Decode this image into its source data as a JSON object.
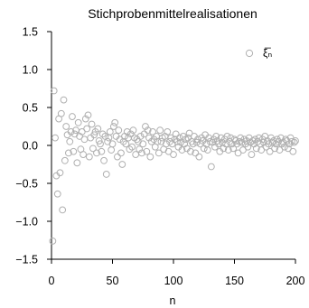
{
  "chart_data": {
    "type": "scatter",
    "title": "Stichprobenmittelrealisationen",
    "xlabel": "n",
    "ylabel": "",
    "xlim": [
      0,
      200
    ],
    "ylim": [
      -1.5,
      1.5
    ],
    "xticks": [
      0,
      50,
      100,
      150,
      200
    ],
    "xtick_labels": [
      "0",
      "50",
      "100",
      "150",
      "200"
    ],
    "yticks": [
      -1.5,
      -1.0,
      -0.5,
      0.0,
      0.5,
      1.0,
      1.5
    ],
    "ytick_labels": [
      "−1.5",
      "−1.0",
      "−0.5",
      "0.0",
      "0.5",
      "1.0",
      "1.5"
    ],
    "grid": false,
    "legend_position": "top-right",
    "series": [
      {
        "name": "ξ̅ₙ",
        "color": "#b0b0b0",
        "marker": "open-circle",
        "x": [
          1,
          2,
          3,
          4,
          5,
          6,
          7,
          8,
          9,
          10,
          11,
          12,
          13,
          14,
          15,
          16,
          17,
          18,
          19,
          20,
          21,
          22,
          23,
          24,
          25,
          26,
          27,
          28,
          29,
          30,
          31,
          32,
          33,
          34,
          35,
          36,
          37,
          38,
          39,
          40,
          41,
          42,
          43,
          44,
          45,
          46,
          47,
          48,
          49,
          50,
          51,
          52,
          53,
          54,
          55,
          56,
          57,
          58,
          59,
          60,
          61,
          62,
          63,
          64,
          65,
          66,
          67,
          68,
          69,
          70,
          71,
          72,
          73,
          74,
          75,
          76,
          77,
          78,
          79,
          80,
          81,
          82,
          83,
          84,
          85,
          86,
          87,
          88,
          89,
          90,
          91,
          92,
          93,
          94,
          95,
          96,
          97,
          98,
          99,
          100,
          101,
          102,
          103,
          104,
          105,
          106,
          107,
          108,
          109,
          110,
          111,
          112,
          113,
          114,
          115,
          116,
          117,
          118,
          119,
          120,
          121,
          122,
          123,
          124,
          125,
          126,
          127,
          128,
          129,
          130,
          131,
          132,
          133,
          134,
          135,
          136,
          137,
          138,
          139,
          140,
          141,
          142,
          143,
          144,
          145,
          146,
          147,
          148,
          149,
          150,
          151,
          152,
          153,
          154,
          155,
          156,
          157,
          158,
          159,
          160,
          161,
          162,
          163,
          164,
          165,
          166,
          167,
          168,
          169,
          170,
          171,
          172,
          173,
          174,
          175,
          176,
          177,
          178,
          179,
          180,
          181,
          182,
          183,
          184,
          185,
          186,
          187,
          188,
          189,
          190,
          191,
          192,
          193,
          194,
          195,
          196,
          197,
          198,
          199,
          200
        ],
        "y": [
          -1.26,
          0.72,
          0.1,
          -0.4,
          -0.64,
          0.35,
          -0.36,
          0.42,
          -0.85,
          0.6,
          -0.2,
          0.25,
          0.14,
          -0.1,
          0.05,
          0.18,
          0.38,
          -0.08,
          0.15,
          0.2,
          -0.23,
          0.3,
          0.12,
          -0.05,
          0.18,
          -0.12,
          0.08,
          0.35,
          0.22,
          0.4,
          -0.15,
          0.1,
          0.28,
          -0.04,
          0.14,
          0.18,
          -0.1,
          0.22,
          0.06,
          0.02,
          -0.08,
          0.15,
          -0.2,
          0.12,
          -0.38,
          0.05,
          0.1,
          0.18,
          -0.06,
          0.02,
          0.25,
          0.3,
          0.12,
          -0.15,
          0.2,
          0.08,
          -0.1,
          -0.25,
          0.05,
          0.12,
          0.02,
          0.18,
          0.1,
          -0.05,
          0.15,
          -0.02,
          0.2,
          0.1,
          -0.12,
          0.08,
          0.05,
          -0.05,
          0.12,
          -0.1,
          0.02,
          0.15,
          0.25,
          -0.08,
          0.2,
          0.1,
          -0.15,
          0.05,
          0.18,
          0.08,
          -0.02,
          0.12,
          0.05,
          -0.1,
          0.2,
          0.05,
          0.1,
          -0.05,
          0.12,
          0.02,
          0.18,
          -0.08,
          0.05,
          0.1,
          0.02,
          -0.12,
          0.08,
          0.15,
          0.05,
          -0.02,
          0.1,
          0.04,
          -0.06,
          0.12,
          0.02,
          0.08,
          -0.04,
          0.1,
          0.16,
          -0.08,
          0.05,
          0.02,
          0.12,
          -0.1,
          0.04,
          0.08,
          -0.15,
          0.02,
          0.1,
          0.06,
          -0.04,
          0.14,
          0.02,
          -0.06,
          0.1,
          0.05,
          -0.28,
          0.04,
          0.08,
          -0.02,
          0.12,
          0.06,
          0.02,
          -0.08,
          0.1,
          0.04,
          -0.04,
          0.08,
          0.02,
          0.12,
          -0.06,
          0.05,
          0.1,
          0.02,
          -0.04,
          0.08,
          0.06,
          0.02,
          -0.1,
          0.05,
          0.1,
          0.04,
          -0.06,
          0.08,
          0.02,
          0.06,
          -0.02,
          0.1,
          0.04,
          -0.12,
          0.06,
          0.02,
          0.08,
          -0.04,
          0.05,
          0.1,
          0.02,
          -0.06,
          0.08,
          0.04,
          0.12,
          -0.02,
          0.06,
          0.02,
          -0.08,
          0.1,
          0.04,
          0.06,
          -0.04,
          0.02,
          0.08,
          0.05,
          -0.06,
          0.1,
          0.02,
          0.04,
          -0.02,
          0.08,
          0.06,
          -0.04,
          0.02,
          0.1,
          0.05,
          -0.08,
          0.04,
          0.06
        ]
      }
    ]
  }
}
